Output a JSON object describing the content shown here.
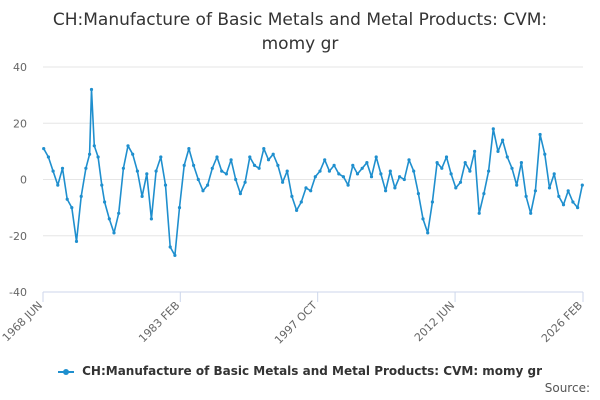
{
  "chart_data": {
    "type": "line",
    "title_line1": "CH:Manufacture of Basic Metals and Metal Products: CVM:",
    "title_line2": "momy gr",
    "xlabel": "",
    "ylabel": "",
    "ylim": [
      -40,
      40
    ],
    "y_ticks": [
      40,
      20,
      0,
      -20,
      -40
    ],
    "x_range": [
      1968.42,
      2026.08
    ],
    "x_ticks": [
      {
        "label": "1968 JUN",
        "value": 1968.42
      },
      {
        "label": "1983 FEB",
        "value": 1983.08
      },
      {
        "label": "1997 OCT",
        "value": 1997.75
      },
      {
        "label": "2012 JUN",
        "value": 2012.42
      },
      {
        "label": "2026 FEB",
        "value": 2026.08
      }
    ],
    "grid": true,
    "legend_position": "bottom",
    "series": [
      {
        "name": "CH:Manufacture of Basic Metals and Metal Products: CVM: momy gr",
        "color": "#1f8fce",
        "points": [
          [
            1968.5,
            11
          ],
          [
            1969.0,
            8
          ],
          [
            1969.5,
            3
          ],
          [
            1970.0,
            -2
          ],
          [
            1970.5,
            4
          ],
          [
            1971.0,
            -7
          ],
          [
            1971.5,
            -10
          ],
          [
            1972.0,
            -22
          ],
          [
            1972.5,
            -6
          ],
          [
            1973.0,
            4
          ],
          [
            1973.4,
            9
          ],
          [
            1973.6,
            32
          ],
          [
            1973.9,
            12
          ],
          [
            1974.3,
            8
          ],
          [
            1974.7,
            -2
          ],
          [
            1975.0,
            -8
          ],
          [
            1975.5,
            -14
          ],
          [
            1976.0,
            -19
          ],
          [
            1976.5,
            -12
          ],
          [
            1977.0,
            4
          ],
          [
            1977.5,
            12
          ],
          [
            1978.0,
            9
          ],
          [
            1978.5,
            3
          ],
          [
            1979.0,
            -6
          ],
          [
            1979.5,
            2
          ],
          [
            1980.0,
            -14
          ],
          [
            1980.5,
            3
          ],
          [
            1981.0,
            8
          ],
          [
            1981.5,
            -2
          ],
          [
            1982.0,
            -24
          ],
          [
            1982.5,
            -27
          ],
          [
            1983.0,
            -10
          ],
          [
            1983.5,
            5
          ],
          [
            1984.0,
            11
          ],
          [
            1984.5,
            5
          ],
          [
            1985.0,
            0
          ],
          [
            1985.5,
            -4
          ],
          [
            1986.0,
            -2
          ],
          [
            1986.5,
            4
          ],
          [
            1987.0,
            8
          ],
          [
            1987.5,
            3
          ],
          [
            1988.0,
            2
          ],
          [
            1988.5,
            7
          ],
          [
            1989.0,
            0
          ],
          [
            1989.5,
            -5
          ],
          [
            1990.0,
            -1
          ],
          [
            1990.5,
            8
          ],
          [
            1991.0,
            5
          ],
          [
            1991.5,
            4
          ],
          [
            1992.0,
            11
          ],
          [
            1992.5,
            7
          ],
          [
            1993.0,
            9
          ],
          [
            1993.5,
            5
          ],
          [
            1994.0,
            -1
          ],
          [
            1994.5,
            3
          ],
          [
            1995.0,
            -6
          ],
          [
            1995.5,
            -11
          ],
          [
            1996.0,
            -8
          ],
          [
            1996.5,
            -3
          ],
          [
            1997.0,
            -4
          ],
          [
            1997.5,
            1
          ],
          [
            1998.0,
            3
          ],
          [
            1998.5,
            7
          ],
          [
            1999.0,
            3
          ],
          [
            1999.5,
            5
          ],
          [
            2000.0,
            2
          ],
          [
            2000.5,
            1
          ],
          [
            2001.0,
            -2
          ],
          [
            2001.5,
            5
          ],
          [
            2002.0,
            2
          ],
          [
            2002.5,
            4
          ],
          [
            2003.0,
            6
          ],
          [
            2003.5,
            1
          ],
          [
            2004.0,
            8
          ],
          [
            2004.5,
            2
          ],
          [
            2005.0,
            -4
          ],
          [
            2005.5,
            3
          ],
          [
            2006.0,
            -3
          ],
          [
            2006.5,
            1
          ],
          [
            2007.0,
            0
          ],
          [
            2007.5,
            7
          ],
          [
            2008.0,
            3
          ],
          [
            2008.5,
            -5
          ],
          [
            2009.0,
            -14
          ],
          [
            2009.5,
            -19
          ],
          [
            2010.0,
            -8
          ],
          [
            2010.5,
            6
          ],
          [
            2011.0,
            4
          ],
          [
            2011.5,
            8
          ],
          [
            2012.0,
            2
          ],
          [
            2012.5,
            -3
          ],
          [
            2013.0,
            -1
          ],
          [
            2013.5,
            6
          ],
          [
            2014.0,
            3
          ],
          [
            2014.5,
            10
          ],
          [
            2015.0,
            -12
          ],
          [
            2015.5,
            -5
          ],
          [
            2016.0,
            3
          ],
          [
            2016.5,
            18
          ],
          [
            2017.0,
            10
          ],
          [
            2017.5,
            14
          ],
          [
            2018.0,
            8
          ],
          [
            2018.5,
            4
          ],
          [
            2019.0,
            -2
          ],
          [
            2019.5,
            6
          ],
          [
            2020.0,
            -6
          ],
          [
            2020.5,
            -12
          ],
          [
            2021.0,
            -4
          ],
          [
            2021.5,
            16
          ],
          [
            2022.0,
            9
          ],
          [
            2022.5,
            -3
          ],
          [
            2023.0,
            2
          ],
          [
            2023.5,
            -6
          ],
          [
            2024.0,
            -9
          ],
          [
            2024.5,
            -4
          ],
          [
            2025.0,
            -8
          ],
          [
            2025.5,
            -10
          ],
          [
            2026.0,
            -2
          ]
        ]
      }
    ]
  },
  "legend": {
    "label": "CH:Manufacture of Basic Metals and Metal Products: CVM: momy gr"
  },
  "footer": {
    "source_label": "Source:"
  }
}
